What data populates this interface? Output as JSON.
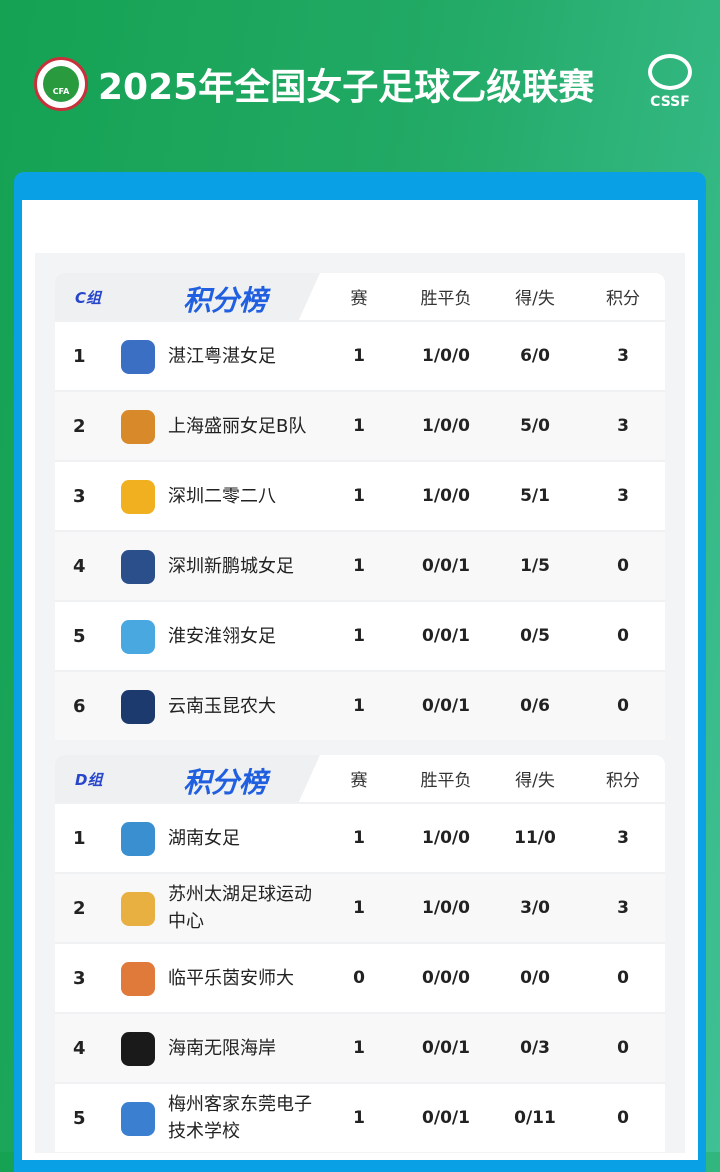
{
  "header": {
    "title": "2025年全国女子足球乙级联赛",
    "left_logo": "CFA",
    "right_logo": "CSSF"
  },
  "columns": {
    "title": "积分榜",
    "played": "赛",
    "wdl": "胜平负",
    "gf_ga": "得/失",
    "points": "积分"
  },
  "groups": [
    {
      "name": "C组",
      "rows": [
        {
          "rank": "1",
          "team": "湛江粤湛女足",
          "played": "1",
          "wdl": "1/0/0",
          "gf_ga": "6/0",
          "points": "3",
          "color": "#3a6fc4"
        },
        {
          "rank": "2",
          "team": "上海盛丽女足B队",
          "played": "1",
          "wdl": "1/0/0",
          "gf_ga": "5/0",
          "points": "3",
          "color": "#d88a2a"
        },
        {
          "rank": "3",
          "team": "深圳二零二八",
          "played": "1",
          "wdl": "1/0/0",
          "gf_ga": "5/1",
          "points": "3",
          "color": "#f0b020"
        },
        {
          "rank": "4",
          "team": "深圳新鹏城女足",
          "played": "1",
          "wdl": "0/0/1",
          "gf_ga": "1/5",
          "points": "0",
          "color": "#2a4f8a"
        },
        {
          "rank": "5",
          "team": "淮安淮翎女足",
          "played": "1",
          "wdl": "0/0/1",
          "gf_ga": "0/5",
          "points": "0",
          "color": "#4aa8e0"
        },
        {
          "rank": "6",
          "team": "云南玉昆农大",
          "played": "1",
          "wdl": "0/0/1",
          "gf_ga": "0/6",
          "points": "0",
          "color": "#1d3a6e"
        }
      ]
    },
    {
      "name": "D组",
      "rows": [
        {
          "rank": "1",
          "team": "湖南女足",
          "played": "1",
          "wdl": "1/0/0",
          "gf_ga": "11/0",
          "points": "3",
          "color": "#3a8fd0"
        },
        {
          "rank": "2",
          "team": "苏州太湖足球运动中心",
          "played": "1",
          "wdl": "1/0/0",
          "gf_ga": "3/0",
          "points": "3",
          "color": "#e8b040"
        },
        {
          "rank": "3",
          "team": "临平乐茵安师大",
          "played": "0",
          "wdl": "0/0/0",
          "gf_ga": "0/0",
          "points": "0",
          "color": "#e07a3a"
        },
        {
          "rank": "4",
          "team": "海南无限海岸",
          "played": "1",
          "wdl": "0/0/1",
          "gf_ga": "0/3",
          "points": "0",
          "color": "#1a1a1a"
        },
        {
          "rank": "5",
          "team": "梅州客家东莞电子技术学校",
          "played": "1",
          "wdl": "0/0/1",
          "gf_ga": "0/11",
          "points": "0",
          "color": "#3a7fd0"
        }
      ]
    }
  ]
}
